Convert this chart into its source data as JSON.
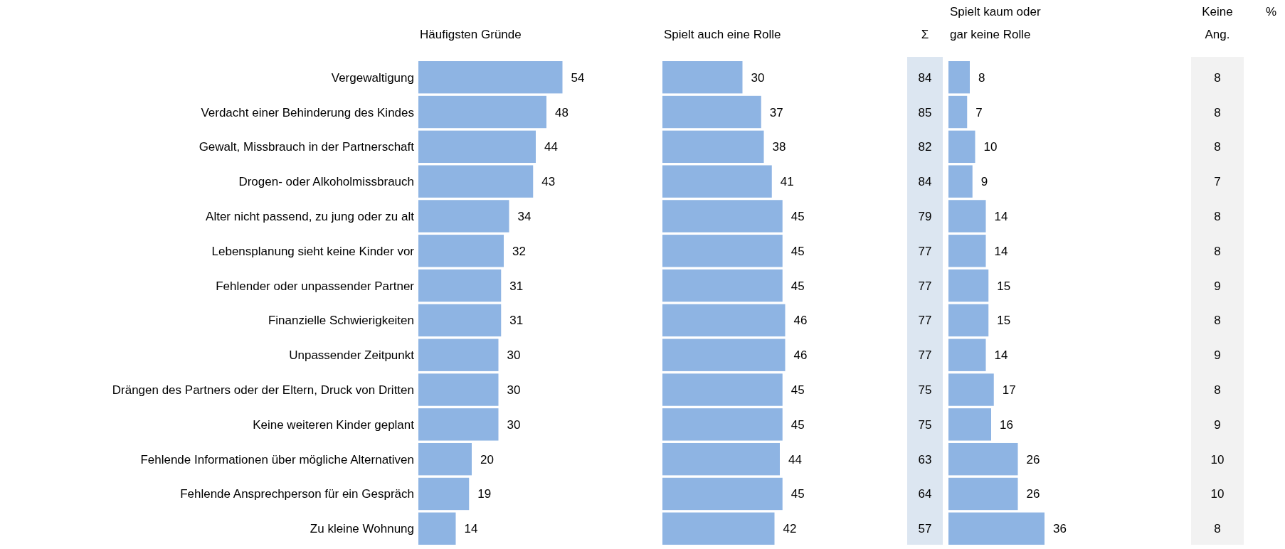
{
  "chart_data": [
    {
      "type": "bar",
      "orientation": "horizontal",
      "title": "Häufigsten Gründe",
      "categories": [
        "Vergewaltigung",
        "Verdacht einer Behinderung des Kindes",
        "Gewalt, Missbrauch in der Partnerschaft",
        "Drogen- oder Alkoholmissbrauch",
        "Alter nicht passend, zu jung oder zu alt",
        "Lebensplanung sieht keine Kinder vor",
        "Fehlender oder unpassender Partner",
        "Finanzielle Schwierigkeiten",
        "Unpassender Zeitpunkt",
        "Drängen des Partners oder der Eltern, Druck von Dritten",
        "Keine weiteren Kinder geplant",
        "Fehlende Informationen über mögliche Alternativen",
        "Fehlende Ansprechperson für ein Gespräch",
        "Zu kleine Wohnung"
      ],
      "values": [
        54,
        48,
        44,
        43,
        34,
        32,
        31,
        31,
        30,
        30,
        30,
        20,
        19,
        14
      ],
      "color": "#8eb4e3",
      "data_labels": true,
      "tick_labels": "y"
    },
    {
      "type": "bar",
      "orientation": "horizontal",
      "title": "Spielt auch eine Rolle",
      "categories": [
        null,
        null,
        null,
        null,
        null,
        null,
        null,
        null,
        null,
        null,
        null,
        null,
        null,
        null
      ],
      "values": [
        30,
        37,
        38,
        41,
        45,
        45,
        45,
        46,
        46,
        45,
        45,
        44,
        45,
        42
      ],
      "color": "#8eb4e3",
      "data_labels": true,
      "tick_labels": false
    },
    {
      "type": "other",
      "title": "Σ",
      "values": [
        84,
        85,
        82,
        84,
        79,
        77,
        77,
        77,
        77,
        75,
        75,
        63,
        64,
        57
      ],
      "color": "#dce6f1",
      "data_labels": true
    },
    {
      "type": "bar",
      "orientation": "horizontal",
      "title": "Spielt kaum oder\ngar keine Rolle",
      "categories": [
        null,
        null,
        null,
        null,
        null,
        null,
        null,
        null,
        null,
        null,
        null,
        null,
        null,
        null
      ],
      "values": [
        8,
        7,
        10,
        9,
        14,
        14,
        15,
        15,
        14,
        17,
        16,
        26,
        26,
        36
      ],
      "color": "#8eb4e3",
      "data_labels": true,
      "tick_labels": false
    },
    {
      "type": "other",
      "title": "Keine\nAng.",
      "values": [
        8,
        8,
        8,
        7,
        8,
        8,
        9,
        8,
        9,
        8,
        9,
        10,
        10,
        8
      ],
      "color": "#f2f2f2",
      "data_labels": true,
      "annotations": [
        "%"
      ]
    }
  ]
}
